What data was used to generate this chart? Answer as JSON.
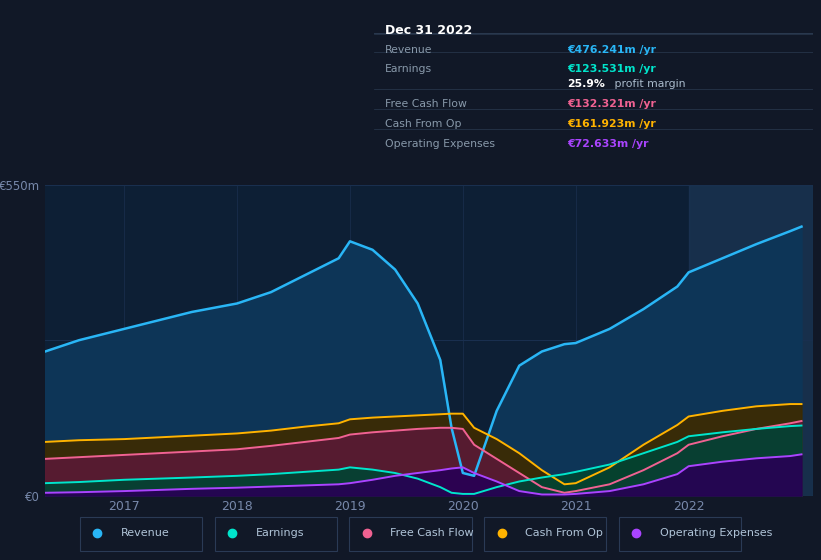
{
  "bg_color": "#111827",
  "plot_bg_color": "#0d1f35",
  "grid_color": "#1a3050",
  "xlabel_color": "#7788aa",
  "ylabel_color": "#7788aa",
  "ylim": [
    0,
    550
  ],
  "xlim_start": 2016.3,
  "xlim_end": 2023.1,
  "xticks": [
    2017,
    2018,
    2019,
    2020,
    2021,
    2022
  ],
  "x": [
    2016.3,
    2016.6,
    2017.0,
    2017.3,
    2017.6,
    2018.0,
    2018.3,
    2018.6,
    2018.9,
    2019.0,
    2019.2,
    2019.4,
    2019.6,
    2019.8,
    2019.9,
    2020.0,
    2020.1,
    2020.3,
    2020.5,
    2020.7,
    2020.9,
    2021.0,
    2021.3,
    2021.6,
    2021.9,
    2022.0,
    2022.3,
    2022.6,
    2022.9,
    2023.0
  ],
  "revenue": [
    255,
    275,
    295,
    310,
    325,
    340,
    360,
    390,
    420,
    450,
    435,
    400,
    340,
    240,
    120,
    40,
    35,
    150,
    230,
    255,
    268,
    270,
    295,
    330,
    370,
    395,
    420,
    445,
    468,
    476
  ],
  "earnings": [
    22,
    24,
    28,
    30,
    32,
    35,
    38,
    42,
    46,
    50,
    46,
    40,
    30,
    15,
    5,
    3,
    3,
    15,
    25,
    32,
    38,
    42,
    55,
    75,
    95,
    105,
    112,
    118,
    123,
    124
  ],
  "free_cash_flow": [
    65,
    68,
    72,
    75,
    78,
    82,
    88,
    95,
    102,
    108,
    112,
    115,
    118,
    120,
    120,
    118,
    90,
    65,
    40,
    15,
    5,
    8,
    20,
    45,
    75,
    90,
    105,
    118,
    128,
    132
  ],
  "cash_from_op": [
    95,
    98,
    100,
    103,
    106,
    110,
    115,
    122,
    128,
    135,
    138,
    140,
    142,
    144,
    145,
    145,
    120,
    100,
    75,
    45,
    20,
    22,
    50,
    90,
    125,
    140,
    150,
    158,
    162,
    162
  ],
  "operating_expenses": [
    5,
    6,
    8,
    10,
    12,
    14,
    16,
    18,
    20,
    22,
    28,
    35,
    40,
    45,
    48,
    50,
    40,
    25,
    8,
    2,
    2,
    3,
    8,
    20,
    38,
    52,
    60,
    66,
    70,
    73
  ],
  "revenue_color": "#29b6f6",
  "revenue_fill": "#0d3557",
  "earnings_color": "#00e5cc",
  "earnings_fill": "#004433",
  "fcf_color": "#f06292",
  "fcf_fill": "#5a1a35",
  "cashop_color": "#ffb300",
  "cashop_fill": "#3d2a00",
  "opex_color": "#aa44ff",
  "opex_fill": "#280055",
  "info_box": {
    "title": "Dec 31 2022",
    "rows": [
      {
        "label": "Revenue",
        "value": "€476.241m /yr",
        "value_color": "#29b6f6"
      },
      {
        "label": "Earnings",
        "value": "€123.531m /yr",
        "value_color": "#00e5cc"
      },
      {
        "label": "",
        "value": "25.9% profit margin",
        "value_color": "#ffffff"
      },
      {
        "label": "Free Cash Flow",
        "value": "€132.321m /yr",
        "value_color": "#f06292"
      },
      {
        "label": "Cash From Op",
        "value": "€161.923m /yr",
        "value_color": "#ffb300"
      },
      {
        "label": "Operating Expenses",
        "value": "€72.633m /yr",
        "value_color": "#aa44ff"
      }
    ],
    "bg_color": "#050a10",
    "border_color": "#2a3a50",
    "text_color": "#8899aa",
    "title_color": "#ffffff"
  },
  "highlight_x_start": 2022.0,
  "highlight_x_end": 2023.1,
  "legend_items": [
    {
      "label": "Revenue",
      "color": "#29b6f6"
    },
    {
      "label": "Earnings",
      "color": "#00e5cc"
    },
    {
      "label": "Free Cash Flow",
      "color": "#f06292"
    },
    {
      "label": "Cash From Op",
      "color": "#ffb300"
    },
    {
      "label": "Operating Expenses",
      "color": "#aa44ff"
    }
  ]
}
